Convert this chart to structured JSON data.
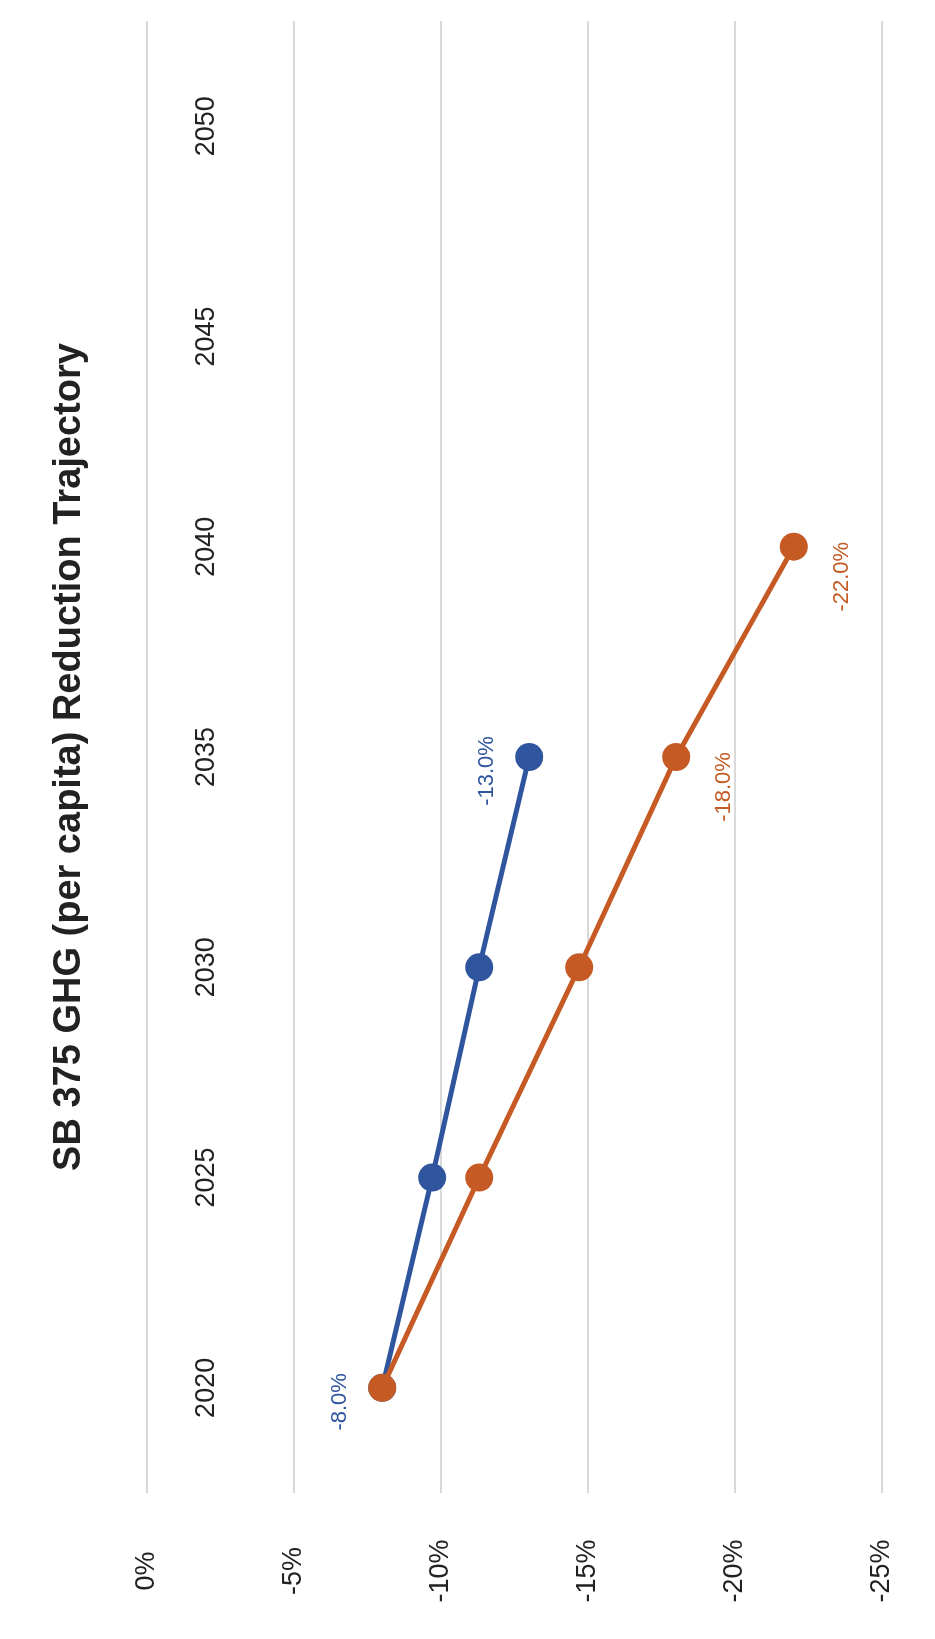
{
  "chart_data": {
    "type": "line",
    "title": "SB 375 GHG (per capita) Reduction Trajectory",
    "orientation": "horizontal",
    "categories": [
      "2050",
      "2045",
      "2040",
      "2035",
      "2030",
      "2025",
      "2020"
    ],
    "series": [
      {
        "color": "#2f559e",
        "values": [
          null,
          null,
          null,
          -13.0,
          -11.3,
          -9.7,
          -8.0
        ],
        "value_labels": [
          null,
          null,
          null,
          "-13.0%",
          null,
          null,
          "-8.0%"
        ]
      },
      {
        "color": "#c55a24",
        "values": [
          null,
          null,
          -22.0,
          -18.0,
          -14.7,
          -11.3,
          -8.0
        ],
        "value_labels": [
          null,
          null,
          "-22.0%",
          "-18.0%",
          null,
          null,
          null
        ]
      }
    ],
    "xlim": [
      0,
      -25
    ],
    "xticks": [
      {
        "value": 0,
        "label": "0%"
      },
      {
        "value": -5,
        "label": "-5%"
      },
      {
        "value": -10,
        "label": "-10%"
      },
      {
        "value": -15,
        "label": "-15%"
      },
      {
        "value": -20,
        "label": "-20%"
      },
      {
        "value": -25,
        "label": "-25%"
      }
    ],
    "grid": "x",
    "legend": false,
    "marker": "circle",
    "line_style": "solid"
  }
}
